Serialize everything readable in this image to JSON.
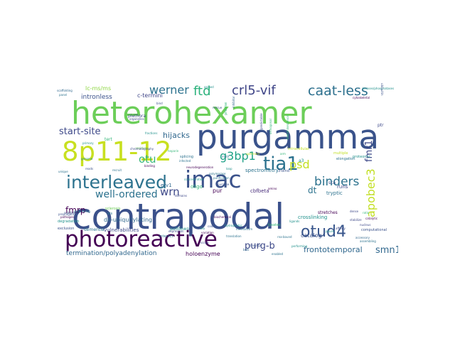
{
  "words": [
    {
      "text": "contrapodal",
      "color": "#3b518b"
    },
    {
      "text": "heterohexamer",
      "color": "#6cce59"
    },
    {
      "text": "purgamma",
      "color": "#3a538b"
    },
    {
      "text": "photoreactive",
      "color": "#440154"
    },
    {
      "text": "8p11-12",
      "color": "#c8e020"
    },
    {
      "text": "imac",
      "color": "#3b528b"
    },
    {
      "text": "interleaved",
      "color": "#2c728e"
    },
    {
      "text": "tia1",
      "color": "#2c728e"
    },
    {
      "text": "otud4",
      "color": "#39568c"
    },
    {
      "text": "crl5-vif",
      "color": "#404688"
    },
    {
      "text": "caat-less",
      "color": "#2d708e"
    },
    {
      "text": "werner",
      "color": "#2c728e"
    },
    {
      "text": "ftd",
      "color": "#2db27d"
    },
    {
      "text": "g3bp1",
      "color": "#1fa187"
    },
    {
      "text": "otu",
      "color": "#35b779"
    },
    {
      "text": "wrn",
      "color": "#3e4989"
    },
    {
      "text": "psd",
      "color": "#c2df23"
    },
    {
      "text": "binders",
      "color": "#2c728e"
    },
    {
      "text": "apobec3",
      "color": "#c2df23"
    },
    {
      "text": "fmr1",
      "color": "#3e4989"
    },
    {
      "text": "well-ordered",
      "color": "#2c728e"
    },
    {
      "text": "start-site",
      "color": "#3e4989"
    },
    {
      "text": "purg-b",
      "color": "#3e4989"
    },
    {
      "text": "smn1",
      "color": "#31688e"
    },
    {
      "text": "dt",
      "color": "#2c728e"
    },
    {
      "text": "fmrp",
      "color": "#440154"
    },
    {
      "text": "frontotemporal",
      "color": "#31688e"
    },
    {
      "text": "hijacks",
      "color": "#31688e"
    },
    {
      "text": "intronless",
      "color": "#3b528b"
    },
    {
      "text": "c-termini",
      "color": "#404688"
    },
    {
      "text": "lc-ms/ms",
      "color": "#8fd744"
    },
    {
      "text": "cullin-ring",
      "color": "#21918c"
    },
    {
      "text": "phosphopeptides",
      "color": "#3e4989"
    },
    {
      "text": "de-ubiquitylating",
      "color": "#31688e"
    },
    {
      "text": "termination/polyadenylation",
      "color": "#31688e"
    },
    {
      "text": "holoenzyme",
      "color": "#440154"
    },
    {
      "text": "catalog",
      "color": "#3b528b"
    },
    {
      "text": "crosslinking",
      "color": "#21918c"
    },
    {
      "text": "vulnerabilities",
      "color": "#3e4989"
    },
    {
      "text": "spectrometry",
      "color": "#2c728e"
    },
    {
      "text": "tryptic",
      "color": "#2c728e"
    },
    {
      "text": "pur",
      "color": "#440154"
    },
    {
      "text": "oligo",
      "color": "#35b779"
    },
    {
      "text": "runs",
      "color": "#3e4989"
    },
    {
      "text": "cbfbeta",
      "color": "#472c7a"
    },
    {
      "text": "etv1",
      "color": "#31688e"
    },
    {
      "text": "pulldown",
      "color": "#21918c"
    },
    {
      "text": "dementia",
      "color": "#2c728e"
    },
    {
      "text": "sca",
      "color": "#3b528b"
    },
    {
      "text": "tert",
      "color": "#35b779"
    },
    {
      "text": "plethora",
      "color": "#3e4989"
    },
    {
      "text": "stretches",
      "color": "#440154"
    },
    {
      "text": "multiple",
      "color": "#c2df23"
    },
    {
      "text": "a3",
      "color": "#21918c"
    },
    {
      "text": "splicing",
      "color": "#2c728e"
    },
    {
      "text": "degradation",
      "color": "#21918c"
    },
    {
      "text": "exclusion",
      "color": "#3b528b"
    },
    {
      "text": "interact",
      "color": "#2c728e"
    },
    {
      "text": "sclerosis",
      "color": "#6ece58"
    },
    {
      "text": "als",
      "color": "#2c728e"
    },
    {
      "text": "substrate",
      "color": "#3b528b"
    },
    {
      "text": "pathogen",
      "color": "#440154"
    },
    {
      "text": "prepragatic",
      "color": "#3b528b"
    },
    {
      "text": "preprcating",
      "color": "#2c728e"
    },
    {
      "text": "elongation",
      "color": "#2c728e"
    },
    {
      "text": "kinases/phosphatases",
      "color": "#21918c"
    },
    {
      "text": "proteomic",
      "color": "#21918c"
    },
    {
      "text": "scaffolding",
      "color": "#31688e"
    },
    {
      "text": "stabilize",
      "color": "#3e4989"
    },
    {
      "text": "unique",
      "color": "#2c728e"
    },
    {
      "text": "residues",
      "color": "#6ece58"
    },
    {
      "text": "organelles",
      "color": "#3e4989"
    },
    {
      "text": "concentration",
      "color": "#21918c"
    },
    {
      "text": "fractions",
      "color": "#21918c"
    },
    {
      "text": "chromatography",
      "color": "#3e4989"
    },
    {
      "text": "purification",
      "color": "#2c728e"
    },
    {
      "text": "translation",
      "color": "#2c728e"
    },
    {
      "text": "cytoskeletal",
      "color": "#440154"
    },
    {
      "text": "computational",
      "color": "#3b528b"
    },
    {
      "text": "accessory",
      "color": "#31688e"
    },
    {
      "text": "assembling",
      "color": "#2c728e"
    },
    {
      "text": "nucleus",
      "color": "#3e4989"
    },
    {
      "text": "performing",
      "color": "#21918c"
    },
    {
      "text": "coding",
      "color": "#3b528b"
    },
    {
      "text": "biochemical",
      "color": "#440154"
    },
    {
      "text": "bulk",
      "color": "#31688e"
    },
    {
      "text": "amino",
      "color": "#440154"
    },
    {
      "text": "hydrophobic",
      "color": "#21918c"
    },
    {
      "text": "affinity",
      "color": "#3e4989"
    },
    {
      "text": "ratio",
      "color": "#35b779"
    },
    {
      "text": "pause",
      "color": "#21918c"
    },
    {
      "text": "dense",
      "color": "#3e4989"
    },
    {
      "text": "rna-bound",
      "color": "#2c728e"
    },
    {
      "text": "catalytic",
      "color": "#440154"
    },
    {
      "text": "cleavage",
      "color": "#3b528b"
    },
    {
      "text": "intracellular",
      "color": "#c2df23"
    },
    {
      "text": "lysates",
      "color": "#35b779"
    },
    {
      "text": "precise",
      "color": "#35b779"
    },
    {
      "text": "inhibitor",
      "color": "#31688e"
    },
    {
      "text": "enabled",
      "color": "#2c728e"
    },
    {
      "text": "predictable",
      "color": "#3e4989"
    },
    {
      "text": "bioluminescence",
      "color": "#35b779"
    },
    {
      "text": "polymerase",
      "color": "#2c728e"
    },
    {
      "text": "3-bind",
      "color": "#3b528b"
    },
    {
      "text": "ligands",
      "color": "#21918c"
    },
    {
      "text": "bio",
      "color": "#21918c"
    },
    {
      "text": "scope",
      "color": "#3e4989"
    },
    {
      "text": "motif",
      "color": "#2c728e"
    },
    {
      "text": "neurodegeneration",
      "color": "#440154"
    },
    {
      "text": "mechanism",
      "color": "#2c728e"
    },
    {
      "text": "purpose",
      "color": "#3b528b"
    },
    {
      "text": "variation",
      "color": "#440154"
    },
    {
      "text": "rescue",
      "color": "#3b528b"
    },
    {
      "text": "gained",
      "color": "#21918c"
    },
    {
      "text": "panel",
      "color": "#2c728e"
    },
    {
      "text": "ptr",
      "color": "#3e4989"
    },
    {
      "text": "bind",
      "color": "#3b528b"
    },
    {
      "text": "loop",
      "color": "#21918c"
    },
    {
      "text": "arm",
      "color": "#35b779"
    },
    {
      "text": "ubiquitin",
      "color": "#3b528b"
    },
    {
      "text": "upstream",
      "color": "#c2df23"
    },
    {
      "text": "orthogonal",
      "color": "#35b779"
    },
    {
      "text": "genome",
      "color": "#21918c"
    },
    {
      "text": "expression",
      "color": "#3e4989"
    },
    {
      "text": "binding",
      "color": "#440154"
    },
    {
      "text": "infected",
      "color": "#2c728e"
    },
    {
      "text": "reads",
      "color": "#3b528b"
    },
    {
      "text": "primary",
      "color": "#21918c"
    },
    {
      "text": "domains",
      "color": "#3e4989"
    },
    {
      "text": "heparin",
      "color": "#35b779"
    },
    {
      "text": "recruit",
      "color": "#2c728e"
    }
  ]
}
